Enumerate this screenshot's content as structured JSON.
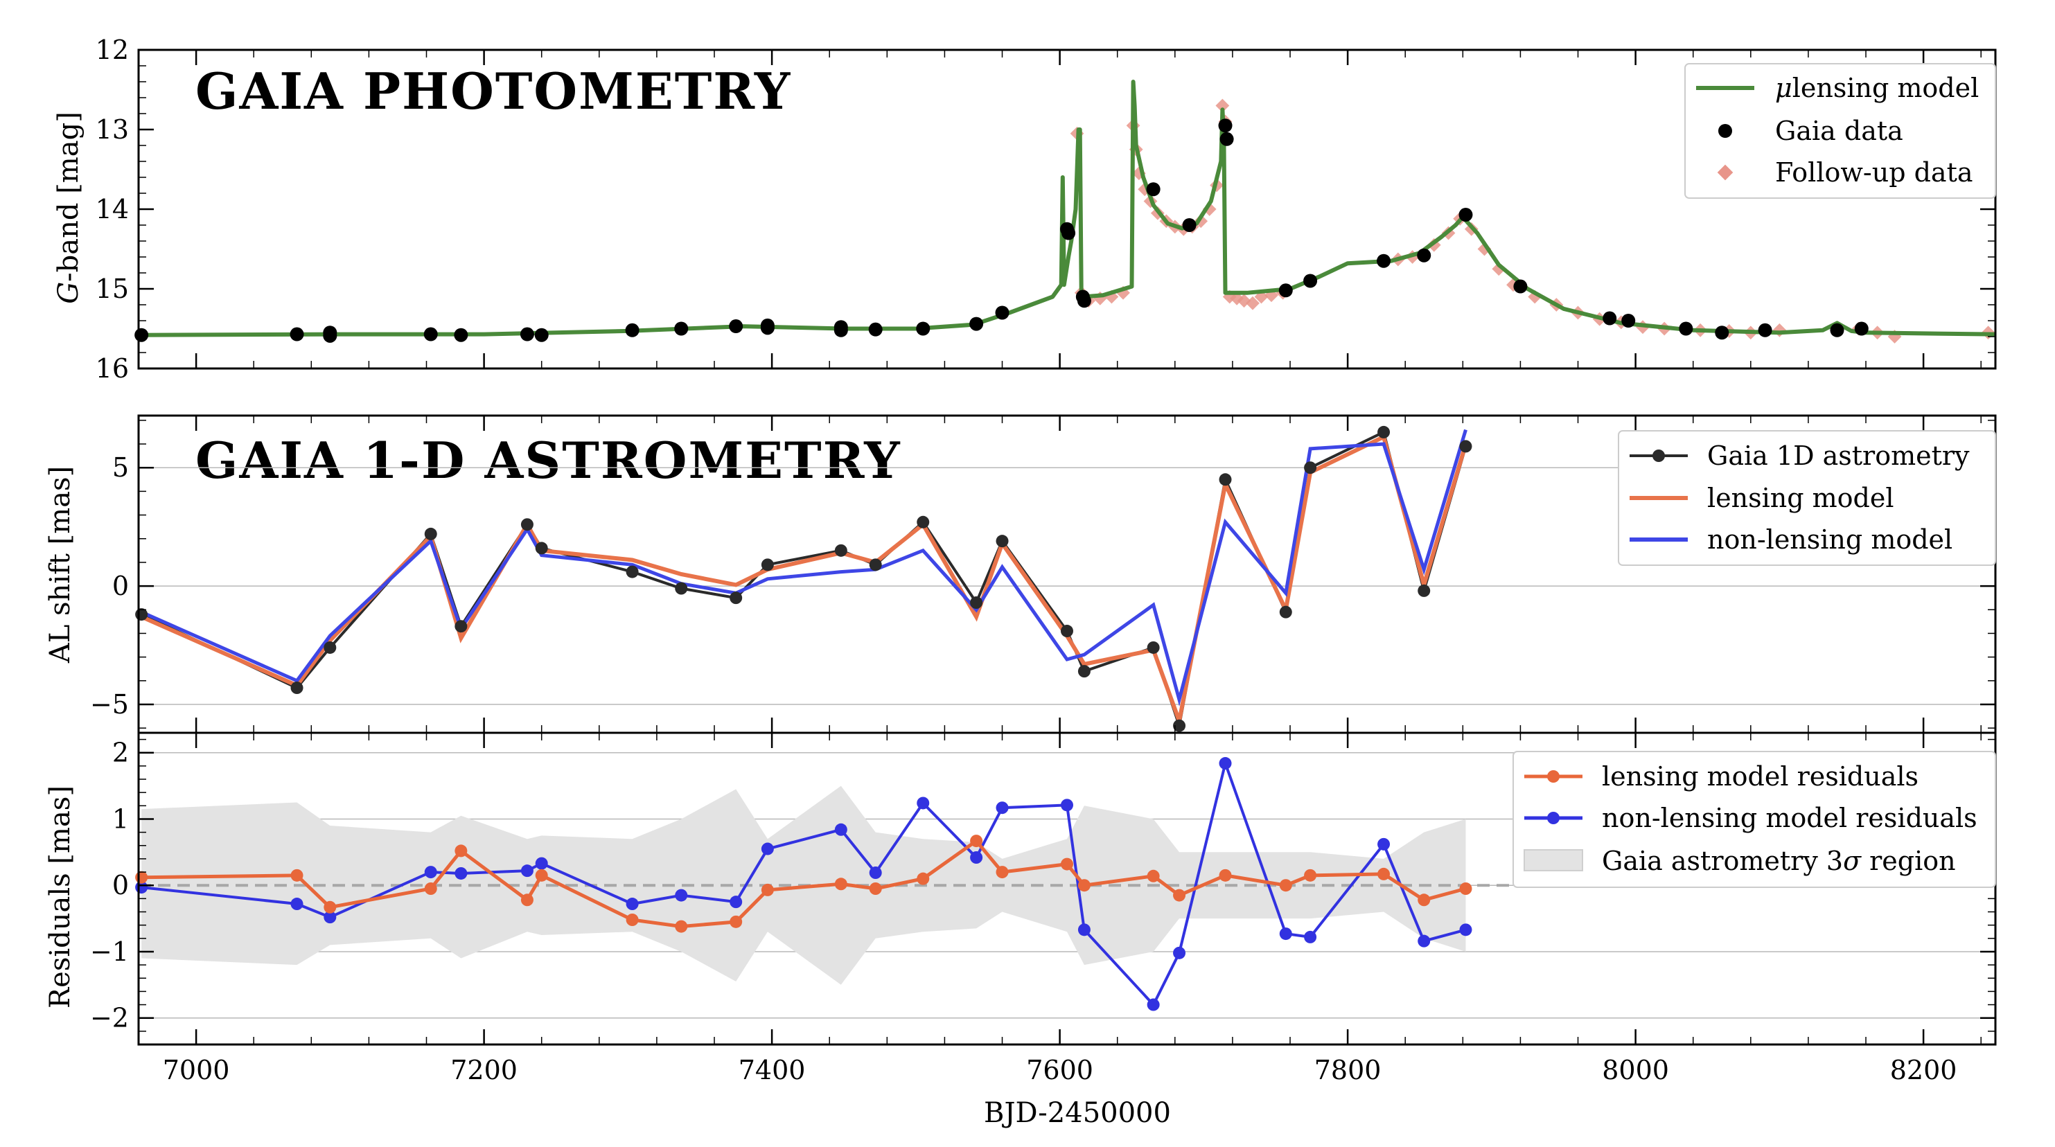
{
  "figure": {
    "xlabel": "BJD-2450000",
    "xlim": [
      6960,
      8250
    ],
    "xticks": [
      7000,
      7200,
      7400,
      7600,
      7800,
      8000,
      8200
    ]
  },
  "chart_data": [
    {
      "type": "scatter",
      "title": "GAIA PHOTOMETRY",
      "ylabel": "G-band [mag]",
      "ylabel_italic": "G",
      "ylabel_rest": "-band [mag]",
      "ylim": [
        12,
        16
      ],
      "y_inverted": true,
      "yticks": [
        12,
        13,
        14,
        15,
        16
      ],
      "legend_position": "top-right",
      "colors": {
        "model": "#4a8a3a",
        "gaia": "#000000",
        "followup": "#e8958a"
      },
      "series": [
        {
          "name": "μlensing model",
          "name_prefix": "μ",
          "name_rest": "lensing model",
          "style": "line",
          "x": [
            6960,
            7100,
            7200,
            7300,
            7380,
            7450,
            7500,
            7540,
            7565,
            7580,
            7595,
            7601,
            7602,
            7603,
            7606,
            7608,
            7611,
            7613,
            7614,
            7615,
            7616,
            7630,
            7650,
            7651,
            7652,
            7653,
            7658,
            7665,
            7675,
            7685,
            7695,
            7705,
            7712,
            7713,
            7714,
            7715,
            7730,
            7760,
            7780,
            7800,
            7830,
            7850,
            7865,
            7875,
            7880,
            7890,
            7905,
            7925,
            7950,
            7990,
            8040,
            8100,
            8130,
            8140,
            8145,
            8150,
            8160,
            8200,
            8250
          ],
          "y": [
            15.58,
            15.57,
            15.57,
            15.53,
            15.47,
            15.5,
            15.5,
            15.45,
            15.3,
            15.2,
            15.1,
            14.95,
            13.6,
            14.95,
            14.6,
            14.4,
            14.0,
            13.0,
            13.0,
            15.1,
            15.1,
            15.08,
            14.97,
            12.4,
            12.7,
            13.2,
            13.6,
            13.95,
            14.18,
            14.24,
            14.18,
            13.9,
            13.4,
            12.75,
            13.1,
            15.05,
            15.05,
            15.0,
            14.85,
            14.68,
            14.65,
            14.55,
            14.35,
            14.2,
            14.1,
            14.3,
            14.7,
            15.0,
            15.25,
            15.43,
            15.52,
            15.55,
            15.52,
            15.43,
            15.48,
            15.53,
            15.55,
            15.56,
            15.57
          ]
        },
        {
          "name": "Gaia data",
          "style": "points",
          "x": [
            6962,
            7070,
            7093,
            7093,
            7163,
            7184,
            7230,
            7240,
            7303,
            7337,
            7375,
            7397,
            7397,
            7448,
            7448,
            7472,
            7505,
            7542,
            7560,
            7605,
            7606,
            7616,
            7617,
            7665,
            7690,
            7715,
            7716,
            7757,
            7774,
            7825,
            7853,
            7882,
            7920,
            7982,
            7995,
            8035,
            8060,
            8090,
            8140,
            8157
          ],
          "y": [
            15.58,
            15.57,
            15.55,
            15.59,
            15.57,
            15.58,
            15.57,
            15.58,
            15.52,
            15.5,
            15.47,
            15.46,
            15.49,
            15.48,
            15.52,
            15.51,
            15.5,
            15.44,
            15.3,
            14.25,
            14.3,
            15.1,
            15.15,
            13.75,
            14.2,
            12.95,
            13.12,
            15.02,
            14.9,
            14.65,
            14.58,
            14.07,
            14.97,
            15.37,
            15.4,
            15.5,
            15.55,
            15.52,
            15.52,
            15.5
          ]
        },
        {
          "name": "Follow-up data",
          "style": "diamonds",
          "x": [
            7612,
            7615,
            7620,
            7628,
            7636,
            7644,
            7651,
            7653,
            7655,
            7659,
            7663,
            7668,
            7674,
            7680,
            7686,
            7692,
            7698,
            7704,
            7709,
            7713,
            7715,
            7718,
            7723,
            7728,
            7734,
            7740,
            7747,
            7755,
            7835,
            7845,
            7860,
            7870,
            7878,
            7886,
            7895,
            7905,
            7915,
            7930,
            7945,
            7960,
            7975,
            7990,
            8005,
            8020,
            8045,
            8065,
            8080,
            8100,
            8155,
            8168,
            8180,
            8245
          ],
          "y": [
            13.05,
            15.05,
            15.15,
            15.12,
            15.1,
            15.05,
            12.95,
            13.25,
            13.55,
            13.75,
            13.9,
            14.05,
            14.15,
            14.22,
            14.25,
            14.22,
            14.15,
            14.0,
            13.7,
            12.7,
            12.9,
            15.1,
            15.12,
            15.15,
            15.18,
            15.1,
            15.08,
            15.05,
            14.63,
            14.6,
            14.45,
            14.3,
            14.12,
            14.25,
            14.5,
            14.75,
            14.95,
            15.1,
            15.2,
            15.3,
            15.38,
            15.42,
            15.48,
            15.5,
            15.52,
            15.53,
            15.55,
            15.52,
            15.5,
            15.55,
            15.6,
            15.55
          ]
        }
      ]
    },
    {
      "type": "line",
      "title": "GAIA 1-D ASTROMETRY",
      "ylabel": "AL shift [mas]",
      "ylim": [
        -6.2,
        7.2
      ],
      "yticks": [
        -5,
        0,
        5
      ],
      "yticklabels": [
        "−5",
        "0",
        "5"
      ],
      "grid": true,
      "legend_position": "top-right",
      "colors": {
        "gaia": "#2a2a2a",
        "lensing": "#e8734a",
        "nonlensing": "#3e46e6"
      },
      "x": [
        6962,
        7070,
        7093,
        7163,
        7184,
        7230,
        7240,
        7303,
        7337,
        7375,
        7397,
        7448,
        7472,
        7505,
        7542,
        7560,
        7605,
        7617,
        7665,
        7683,
        7715,
        7757,
        7774,
        7825,
        7853,
        7882
      ],
      "series": [
        {
          "name": "Gaia 1D astrometry",
          "style": "line-points",
          "y": [
            -1.2,
            -4.3,
            -2.6,
            2.2,
            -1.7,
            2.6,
            1.6,
            0.6,
            -0.1,
            -0.5,
            0.9,
            1.5,
            0.9,
            2.7,
            -0.7,
            1.9,
            -1.9,
            -3.6,
            -2.6,
            -5.9,
            4.5,
            -1.1,
            5.0,
            6.5,
            -0.2,
            5.9
          ]
        },
        {
          "name": "lensing model",
          "style": "line",
          "y": [
            -1.3,
            -4.2,
            -2.3,
            2.1,
            -2.2,
            2.6,
            1.5,
            1.1,
            0.5,
            0.05,
            0.7,
            1.4,
            1.0,
            2.6,
            -1.3,
            1.8,
            -2.1,
            -3.3,
            -2.7,
            -5.7,
            4.3,
            -1.0,
            4.8,
            6.3,
            0.05,
            6.0
          ]
        },
        {
          "name": "non-lensing model",
          "style": "line",
          "y": [
            -1.1,
            -4.0,
            -2.1,
            1.9,
            -1.8,
            2.4,
            1.3,
            0.9,
            0.1,
            -0.3,
            0.3,
            0.6,
            0.7,
            1.5,
            -1.0,
            0.8,
            -3.1,
            -2.9,
            -0.8,
            -4.8,
            2.7,
            -0.3,
            5.8,
            6.0,
            0.7,
            6.6
          ]
        }
      ]
    },
    {
      "type": "line",
      "ylabel": "Residuals [mas]",
      "ylim": [
        -2.4,
        2.3
      ],
      "yticks": [
        -2,
        -1,
        0,
        1,
        2
      ],
      "yticklabels": [
        "−2",
        "−1",
        "0",
        "1",
        "2"
      ],
      "grid": true,
      "legend_position": "top-right",
      "colors": {
        "lensing": "#e8673a",
        "nonlensing": "#3232e0",
        "band": "#e3e3e3"
      },
      "x": [
        6962,
        7070,
        7093,
        7163,
        7184,
        7230,
        7240,
        7303,
        7337,
        7375,
        7397,
        7448,
        7472,
        7505,
        7542,
        7560,
        7605,
        7617,
        7665,
        7683,
        7715,
        7757,
        7774,
        7825,
        7853,
        7882
      ],
      "series": [
        {
          "name": "lensing model residuals",
          "style": "line-points",
          "y": [
            0.12,
            0.15,
            -0.33,
            -0.05,
            0.52,
            -0.22,
            0.15,
            -0.52,
            -0.62,
            -0.55,
            -0.07,
            0.02,
            -0.05,
            0.1,
            0.67,
            0.2,
            0.32,
            0.0,
            0.14,
            -0.15,
            0.15,
            0.0,
            0.15,
            0.17,
            -0.22,
            -0.05
          ]
        },
        {
          "name": "non-lensing model residuals",
          "style": "line-points",
          "y": [
            -0.03,
            -0.28,
            -0.48,
            0.2,
            0.18,
            0.22,
            0.33,
            -0.28,
            -0.15,
            -0.25,
            0.55,
            0.84,
            0.19,
            1.24,
            0.42,
            1.17,
            1.21,
            -0.67,
            -1.8,
            -1.02,
            1.84,
            -0.73,
            -0.78,
            0.62,
            -0.84,
            -0.67
          ]
        }
      ],
      "band": {
        "name": "Gaia astrometry 3σ region",
        "name_prefix": "Gaia astrometry 3",
        "name_sigma": "σ",
        "name_rest": " region",
        "x": [
          6962,
          7070,
          7093,
          7163,
          7184,
          7230,
          7240,
          7303,
          7337,
          7375,
          7397,
          7448,
          7472,
          7505,
          7542,
          7560,
          7605,
          7617,
          7665,
          7683,
          7715,
          7757,
          7774,
          7825,
          7853,
          7882
        ],
        "upper": [
          1.15,
          1.25,
          0.9,
          0.8,
          1.05,
          0.7,
          0.75,
          0.7,
          1.0,
          1.45,
          0.7,
          1.5,
          0.8,
          0.7,
          0.65,
          0.4,
          0.7,
          1.2,
          1.0,
          0.5,
          0.5,
          0.5,
          0.5,
          0.4,
          0.8,
          1.0
        ],
        "lower": [
          -1.1,
          -1.2,
          -0.9,
          -0.8,
          -1.1,
          -0.7,
          -0.75,
          -0.7,
          -1.0,
          -1.45,
          -0.7,
          -1.5,
          -0.8,
          -0.7,
          -0.65,
          -0.4,
          -0.7,
          -1.2,
          -1.0,
          -0.5,
          -0.5,
          -0.5,
          -0.5,
          -0.4,
          -0.8,
          -1.0
        ]
      }
    }
  ]
}
